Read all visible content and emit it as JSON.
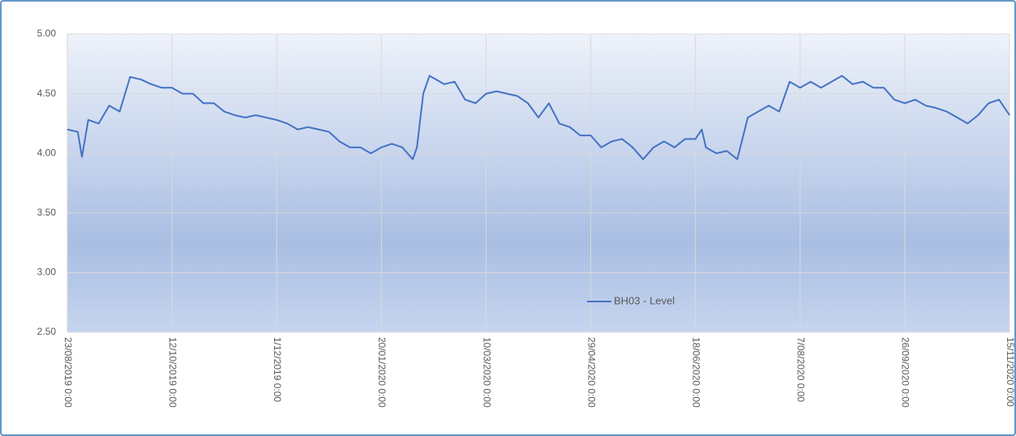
{
  "chart_data": {
    "type": "line",
    "x": [
      "2019-08-23",
      "2019-08-28",
      "2019-08-30",
      "2019-09-02",
      "2019-09-07",
      "2019-09-12",
      "2019-09-17",
      "2019-09-22",
      "2019-09-27",
      "2019-10-02",
      "2019-10-07",
      "2019-10-12",
      "2019-10-17",
      "2019-10-22",
      "2019-10-27",
      "2019-11-01",
      "2019-11-06",
      "2019-11-11",
      "2019-11-16",
      "2019-11-21",
      "2019-11-26",
      "2019-12-01",
      "2019-12-06",
      "2019-12-11",
      "2019-12-16",
      "2019-12-21",
      "2019-12-26",
      "2019-12-31",
      "2020-01-05",
      "2020-01-10",
      "2020-01-15",
      "2020-01-20",
      "2020-01-25",
      "2020-01-30",
      "2020-02-04",
      "2020-02-06",
      "2020-02-09",
      "2020-02-12",
      "2020-02-19",
      "2020-02-24",
      "2020-02-29",
      "2020-03-05",
      "2020-03-10",
      "2020-03-15",
      "2020-03-20",
      "2020-03-25",
      "2020-03-30",
      "2020-04-04",
      "2020-04-09",
      "2020-04-14",
      "2020-04-19",
      "2020-04-24",
      "2020-04-29",
      "2020-05-04",
      "2020-05-09",
      "2020-05-14",
      "2020-05-19",
      "2020-05-24",
      "2020-05-29",
      "2020-06-03",
      "2020-06-08",
      "2020-06-13",
      "2020-06-18",
      "2020-06-21",
      "2020-06-23",
      "2020-06-28",
      "2020-07-03",
      "2020-07-08",
      "2020-07-13",
      "2020-07-18",
      "2020-07-23",
      "2020-07-28",
      "2020-08-02",
      "2020-08-07",
      "2020-08-12",
      "2020-08-17",
      "2020-08-22",
      "2020-08-27",
      "2020-09-01",
      "2020-09-06",
      "2020-09-11",
      "2020-09-16",
      "2020-09-21",
      "2020-09-26",
      "2020-10-01",
      "2020-10-06",
      "2020-10-11",
      "2020-10-16",
      "2020-10-21",
      "2020-10-26",
      "2020-10-31",
      "2020-11-05",
      "2020-11-10",
      "2020-11-15"
    ],
    "series": [
      {
        "name": "BH03 - Level",
        "color": "#4472c4",
        "values": [
          4.2,
          4.18,
          3.97,
          4.28,
          4.25,
          4.4,
          4.35,
          4.64,
          4.62,
          4.58,
          4.55,
          4.55,
          4.5,
          4.5,
          4.42,
          4.42,
          4.35,
          4.32,
          4.3,
          4.32,
          4.3,
          4.28,
          4.25,
          4.2,
          4.22,
          4.2,
          4.18,
          4.1,
          4.05,
          4.05,
          4.0,
          4.05,
          4.08,
          4.05,
          3.95,
          4.05,
          4.5,
          4.65,
          4.58,
          4.6,
          4.45,
          4.42,
          4.5,
          4.52,
          4.5,
          4.48,
          4.42,
          4.3,
          4.42,
          4.25,
          4.22,
          4.15,
          4.15,
          4.05,
          4.1,
          4.12,
          4.05,
          3.95,
          4.05,
          4.1,
          4.05,
          4.12,
          4.12,
          4.2,
          4.05,
          4.0,
          4.02,
          3.95,
          4.3,
          4.35,
          4.4,
          4.35,
          4.6,
          4.55,
          4.6,
          4.55,
          4.6,
          4.65,
          4.58,
          4.6,
          4.55,
          4.55,
          4.45,
          4.42,
          4.45,
          4.4,
          4.38,
          4.35,
          4.3,
          4.25,
          4.32,
          4.42,
          4.45,
          4.32
        ]
      }
    ],
    "xlim": [
      "2019-08-23",
      "2020-11-15"
    ],
    "xticks": [
      {
        "value": "2019-08-23",
        "label": "23/08/2019 0:00"
      },
      {
        "value": "2019-10-12",
        "label": "12/10/2019 0:00"
      },
      {
        "value": "2019-12-01",
        "label": "1/12/2019 0:00"
      },
      {
        "value": "2020-01-20",
        "label": "20/01/2020 0:00"
      },
      {
        "value": "2020-03-10",
        "label": "10/03/2020 0:00"
      },
      {
        "value": "2020-04-29",
        "label": "29/04/2020 0:00"
      },
      {
        "value": "2020-06-18",
        "label": "18/06/2020 0:00"
      },
      {
        "value": "2020-08-07",
        "label": "7/08/2020 0:00"
      },
      {
        "value": "2020-09-26",
        "label": "26/09/2020 0:00"
      },
      {
        "value": "2020-11-15",
        "label": "15/11/2020 0:00"
      }
    ],
    "ylim": [
      2.5,
      5.0
    ],
    "yticks": [
      {
        "value": 2.5,
        "label": "2.50"
      },
      {
        "value": 3.0,
        "label": "3.00"
      },
      {
        "value": 3.5,
        "label": "3.50"
      },
      {
        "value": 4.0,
        "label": "4.00"
      },
      {
        "value": 4.5,
        "label": "4.50"
      },
      {
        "value": 5.0,
        "label": "5.00"
      }
    ],
    "grid": true,
    "legend": "bottom"
  }
}
